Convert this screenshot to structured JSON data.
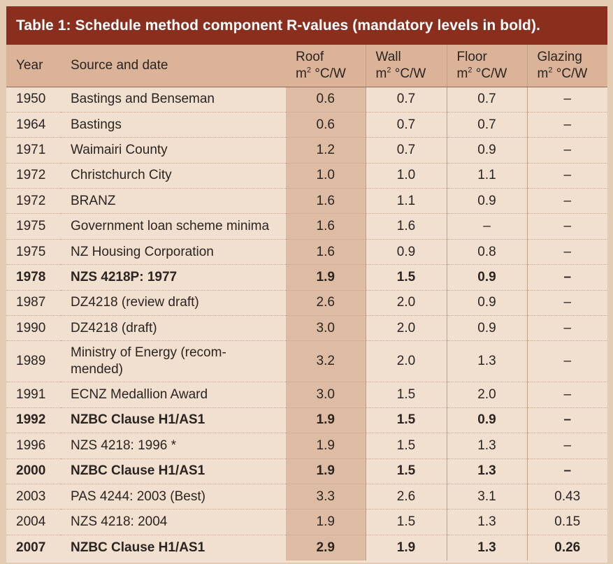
{
  "title": "Table 1: Schedule method component R-values (mandatory levels in bold).",
  "headers": {
    "year": "Year",
    "source": "Source and date",
    "roof": "Roof",
    "wall": "Wall",
    "floor": "Floor",
    "glazing": "Glazing",
    "unit_prefix": "m",
    "unit_sup": "2",
    "unit_suffix": " °C/W"
  },
  "rows": [
    {
      "year": "1950",
      "source": "Bastings and Benseman",
      "roof": "0.6",
      "wall": "0.7",
      "floor": "0.7",
      "glazing": "–",
      "bold": false
    },
    {
      "year": "1964",
      "source": "Bastings",
      "roof": "0.6",
      "wall": "0.7",
      "floor": "0.7",
      "glazing": "–",
      "bold": false
    },
    {
      "year": "1971",
      "source": "Waimairi County",
      "roof": "1.2",
      "wall": "0.7",
      "floor": "0.9",
      "glazing": "–",
      "bold": false
    },
    {
      "year": "1972",
      "source": "Christchurch City",
      "roof": "1.0",
      "wall": "1.0",
      "floor": "1.1",
      "glazing": "–",
      "bold": false
    },
    {
      "year": "1972",
      "source": "BRANZ",
      "roof": "1.6",
      "wall": "1.1",
      "floor": "0.9",
      "glazing": "–",
      "bold": false
    },
    {
      "year": "1975",
      "source": "Government loan scheme minima",
      "roof": "1.6",
      "wall": "1.6",
      "floor": "–",
      "glazing": "–",
      "bold": false
    },
    {
      "year": "1975",
      "source": "NZ Housing Corporation",
      "roof": "1.6",
      "wall": "0.9",
      "floor": "0.8",
      "glazing": "–",
      "bold": false
    },
    {
      "year": "1978",
      "source": "NZS 4218P: 1977",
      "roof": "1.9",
      "wall": "1.5",
      "floor": "0.9",
      "glazing": "–",
      "bold": true
    },
    {
      "year": "1987",
      "source": "DZ4218 (review draft)",
      "roof": "2.6",
      "wall": "2.0",
      "floor": "0.9",
      "glazing": "–",
      "bold": false
    },
    {
      "year": "1990",
      "source": "DZ4218 (draft)",
      "roof": "3.0",
      "wall": "2.0",
      "floor": "0.9",
      "glazing": "–",
      "bold": false
    },
    {
      "year": "1989",
      "source": "Ministry of Energy (recom-\nmended)",
      "roof": "3.2",
      "wall": "2.0",
      "floor": "1.3",
      "glazing": "–",
      "bold": false,
      "tall": true
    },
    {
      "year": "1991",
      "source": "ECNZ Medallion Award",
      "roof": "3.0",
      "wall": "1.5",
      "floor": "2.0",
      "glazing": "–",
      "bold": false
    },
    {
      "year": "1992",
      "source": "NZBC Clause H1/AS1",
      "roof": "1.9",
      "wall": "1.5",
      "floor": "0.9",
      "glazing": "–",
      "bold": true
    },
    {
      "year": "1996",
      "source": "NZS 4218: 1996 *",
      "roof": "1.9",
      "wall": "1.5",
      "floor": "1.3",
      "glazing": "–",
      "bold": false
    },
    {
      "year": "2000",
      "source": "NZBC Clause H1/AS1",
      "roof": "1.9",
      "wall": "1.5",
      "floor": "1.3",
      "glazing": "–",
      "bold": true
    },
    {
      "year": "2003",
      "source": "PAS 4244: 2003 (Best)",
      "roof": "3.3",
      "wall": "2.6",
      "floor": "3.1",
      "glazing": "0.43",
      "bold": false
    },
    {
      "year": "2004",
      "source": "NZS 4218: 2004",
      "roof": "1.9",
      "wall": "1.5",
      "floor": "1.3",
      "glazing": "0.15",
      "bold": false
    },
    {
      "year": "2007",
      "source": "NZBC Clause H1/AS1",
      "roof": "2.9",
      "wall": "1.9",
      "floor": "1.3",
      "glazing": "0.26",
      "bold": true
    }
  ],
  "colors": {
    "title_bar": "#8a2f1e",
    "header_row": "#dab399",
    "roof_column": "#ddbca3",
    "body": "#f1e0cf",
    "outer": "#e4cbb3"
  }
}
